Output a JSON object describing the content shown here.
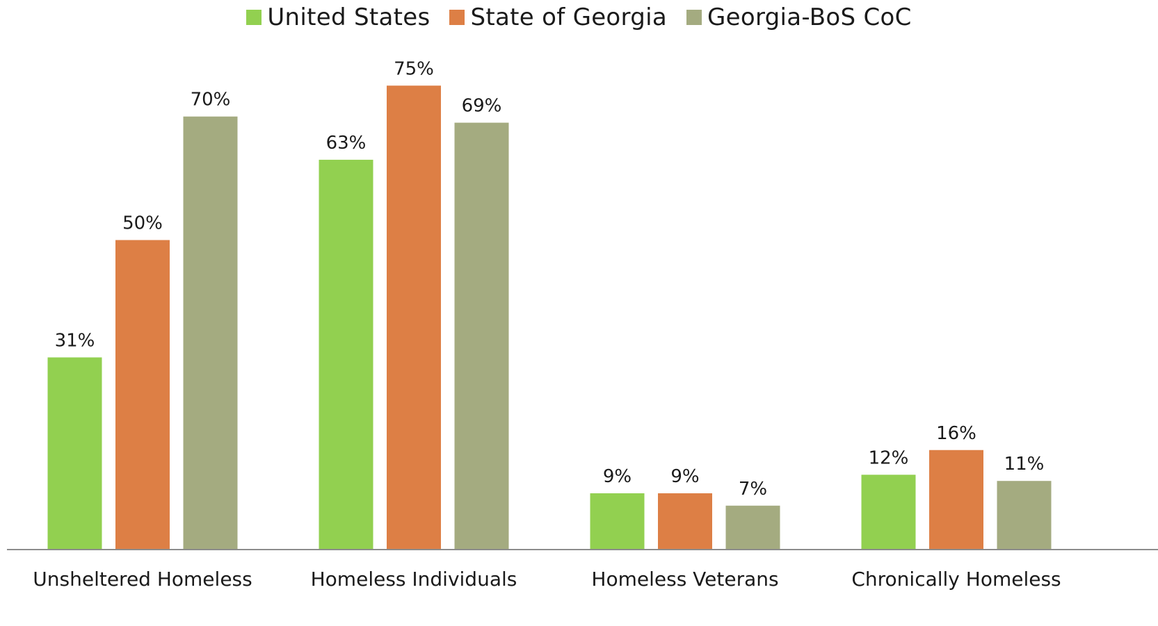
{
  "chart_data": {
    "type": "bar",
    "categories": [
      "Unsheltered Homeless",
      "Homeless Individuals",
      "Homeless Veterans",
      "Chronically Homeless"
    ],
    "series": [
      {
        "name": "United States",
        "color": "#92d050",
        "values": [
          31,
          63,
          9,
          12
        ],
        "labels": [
          "31%",
          "63%",
          "9%",
          "12%"
        ]
      },
      {
        "name": "State of Georgia",
        "color": "#dd7f45",
        "values": [
          50,
          75,
          9,
          16
        ],
        "labels": [
          "50%",
          "75%",
          "9%",
          "16%"
        ]
      },
      {
        "name": "Georgia-BoS CoC",
        "color": "#a4ab80",
        "values": [
          70,
          69,
          7,
          11
        ],
        "labels": [
          "70%",
          "69%",
          "7%",
          "11%"
        ]
      }
    ],
    "ylim": [
      0,
      75
    ],
    "legend": "top-center",
    "grid": false
  }
}
